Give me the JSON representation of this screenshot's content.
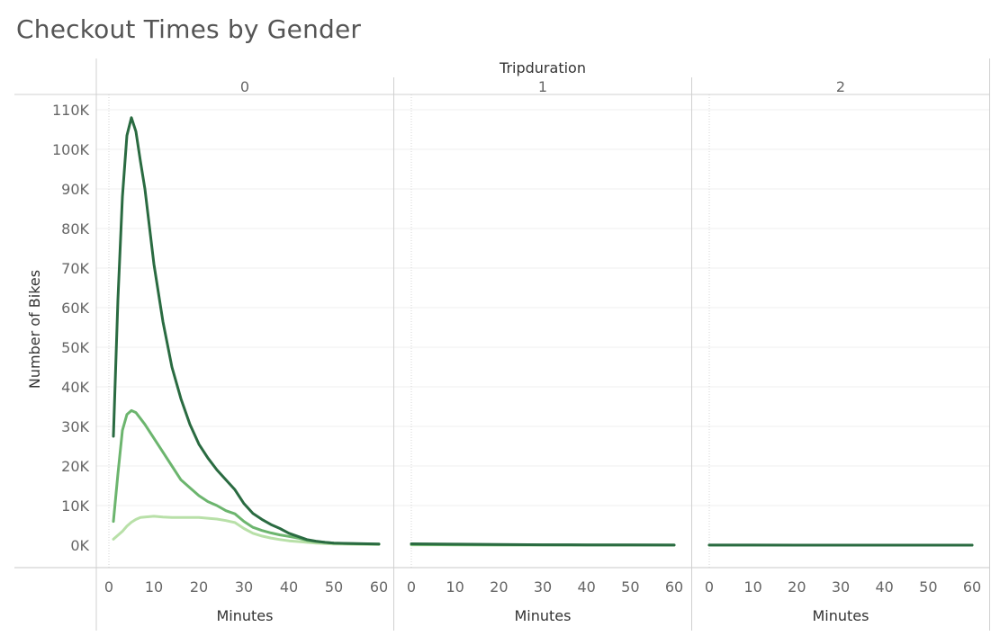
{
  "title": "Checkout Times by Gender",
  "chart_data": {
    "type": "line",
    "column_header": "Tripduration",
    "facets": [
      "0",
      "1",
      "2"
    ],
    "xlabel": "Minutes",
    "ylabel": "Number of Bikes",
    "xlim": [
      0,
      60
    ],
    "ylim": [
      0,
      115000
    ],
    "x_ticks": [
      "0",
      "10",
      "20",
      "30",
      "40",
      "50",
      "60"
    ],
    "y_ticks": [
      "0K",
      "10K",
      "20K",
      "30K",
      "40K",
      "50K",
      "60K",
      "70K",
      "80K",
      "90K",
      "100K",
      "110K"
    ],
    "y_tick_values": [
      0,
      10000,
      20000,
      30000,
      40000,
      50000,
      60000,
      70000,
      80000,
      90000,
      100000,
      110000
    ],
    "grid": true,
    "series_colors": [
      "#2a6b41",
      "#6cb56e",
      "#b8e0a8"
    ],
    "panels": [
      {
        "facet": "0",
        "series": [
          {
            "x": [
              1,
              2,
              3,
              4,
              5,
              6,
              7,
              8,
              10,
              12,
              14,
              16,
              18,
              20,
              22,
              24,
              26,
              28,
              30,
              32,
              34,
              36,
              38,
              40,
              42,
              44,
              46,
              48,
              50,
              55,
              60
            ],
            "values": [
              27500,
              62000,
              88000,
              103500,
              108000,
              104500,
              97000,
              90000,
              71000,
              56500,
              45000,
              37000,
              30500,
              25500,
              22000,
              19000,
              16500,
              14000,
              10500,
              8000,
              6500,
              5200,
              4200,
              3000,
              2200,
              1400,
              1000,
              700,
              500,
              400,
              300
            ]
          },
          {
            "x": [
              1,
              2,
              3,
              4,
              5,
              6,
              7,
              8,
              10,
              12,
              14,
              16,
              18,
              20,
              22,
              24,
              26,
              28,
              30,
              32,
              34,
              36,
              38,
              40,
              42,
              44,
              46,
              48,
              50,
              55,
              60
            ],
            "values": [
              6000,
              18000,
              29000,
              33000,
              34000,
              33500,
              32000,
              30500,
              27000,
              23500,
              20000,
              16500,
              14500,
              12500,
              11000,
              10000,
              8700,
              7900,
              6000,
              4500,
              3700,
              3100,
              2600,
              2200,
              1800,
              1200,
              900,
              700,
              500,
              350,
              250
            ]
          },
          {
            "x": [
              1,
              2,
              3,
              4,
              5,
              6,
              7,
              8,
              10,
              12,
              14,
              16,
              18,
              20,
              22,
              24,
              26,
              28,
              30,
              32,
              34,
              36,
              38,
              40,
              42,
              44,
              46,
              48,
              50,
              55,
              60
            ],
            "values": [
              1500,
              2500,
              3500,
              4800,
              5800,
              6500,
              7000,
              7100,
              7300,
              7100,
              7000,
              7000,
              7000,
              7000,
              6800,
              6600,
              6200,
              5700,
              4200,
              3000,
              2300,
              1800,
              1400,
              1100,
              900,
              700,
              500,
              400,
              300,
              200,
              150
            ]
          }
        ]
      },
      {
        "facet": "1",
        "series": [
          {
            "x": [
              0,
              10,
              20,
              30,
              40,
              50,
              60
            ],
            "values": [
              350,
              250,
              150,
              100,
              60,
              40,
              30
            ]
          },
          {
            "x": [
              0,
              10,
              20,
              30,
              40,
              50,
              60
            ],
            "values": [
              150,
              100,
              70,
              50,
              30,
              20,
              15
            ]
          },
          {
            "x": [
              0,
              10,
              20,
              30,
              40,
              50,
              60
            ],
            "values": [
              60,
              40,
              30,
              20,
              15,
              10,
              8
            ]
          }
        ]
      },
      {
        "facet": "2",
        "series": [
          {
            "x": [
              0,
              10,
              20,
              30,
              40,
              50,
              60
            ],
            "values": [
              20,
              15,
              10,
              10,
              8,
              6,
              5
            ]
          },
          {
            "x": [
              0,
              10,
              20,
              30,
              40,
              50,
              60
            ],
            "values": [
              10,
              8,
              6,
              5,
              4,
              3,
              2
            ]
          },
          {
            "x": [
              0,
              10,
              20,
              30,
              40,
              50,
              60
            ],
            "values": [
              5,
              4,
              3,
              2,
              2,
              1,
              1
            ]
          }
        ]
      }
    ]
  }
}
